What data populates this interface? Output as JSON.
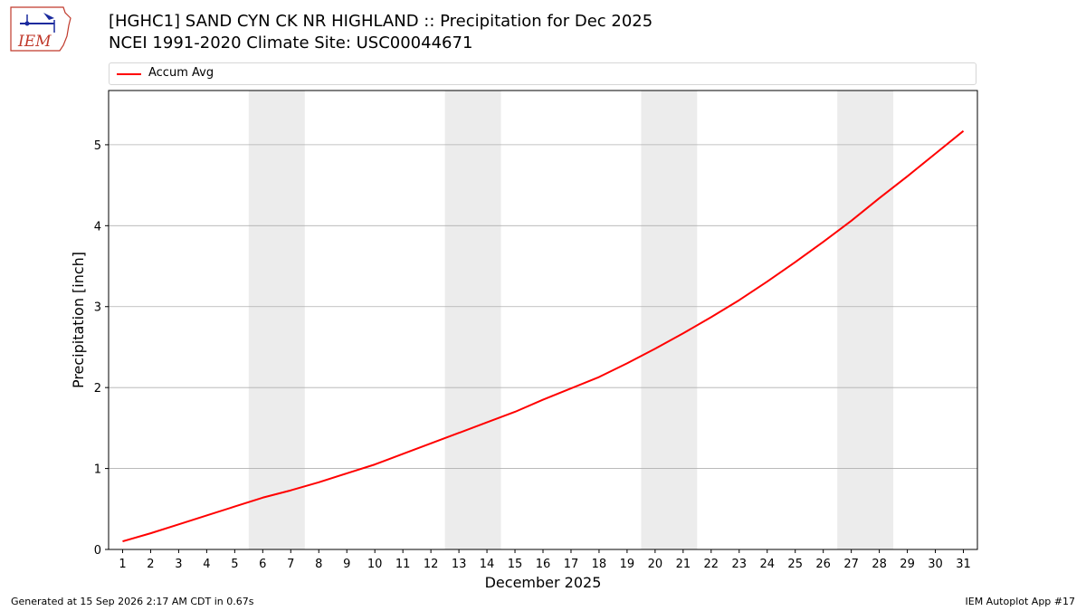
{
  "header": {
    "title_line1": "[HGHC1] SAND CYN CK NR HIGHLAND :: Precipitation for Dec 2025",
    "title_line2": "NCEI 1991-2020 Climate Site: USC00044671"
  },
  "logo": {
    "text": "IEM",
    "icon": "iem-logo-icon"
  },
  "footer": {
    "left": "Generated at 15 Sep 2026 2:17 AM CDT in 0.67s",
    "right": "IEM Autoplot App #17"
  },
  "colors": {
    "line": "#ff0000",
    "weekend_band": "#ececec",
    "grid": "#b0b0b0"
  },
  "chart_data": {
    "type": "line",
    "title": "[HGHC1] SAND CYN CK NR HIGHLAND :: Precipitation for Dec 2025",
    "subtitle": "NCEI 1991-2020 Climate Site: USC00044671",
    "xlabel": "December 2025",
    "ylabel": "Precipitation [inch]",
    "x": [
      1,
      2,
      3,
      4,
      5,
      6,
      7,
      8,
      9,
      10,
      11,
      12,
      13,
      14,
      15,
      16,
      17,
      18,
      19,
      20,
      21,
      22,
      23,
      24,
      25,
      26,
      27,
      28,
      29,
      30,
      31
    ],
    "x_ticks": [
      "1",
      "2",
      "3",
      "4",
      "5",
      "6",
      "7",
      "8",
      "9",
      "10",
      "11",
      "12",
      "13",
      "14",
      "15",
      "16",
      "17",
      "18",
      "19",
      "20",
      "21",
      "22",
      "23",
      "24",
      "25",
      "26",
      "27",
      "28",
      "29",
      "30",
      "31"
    ],
    "xlim": [
      0.5,
      31.5
    ],
    "ylim": [
      0,
      5.67
    ],
    "y_ticks": [
      0,
      1,
      2,
      3,
      4,
      5
    ],
    "grid": "horizontal",
    "legend": "top",
    "shaded_x_ranges": [
      [
        5.5,
        7.5
      ],
      [
        12.5,
        14.5
      ],
      [
        19.5,
        21.5
      ],
      [
        26.5,
        28.5
      ]
    ],
    "series": [
      {
        "name": "Accum Avg",
        "values": [
          0.1,
          0.2,
          0.31,
          0.42,
          0.53,
          0.64,
          0.73,
          0.83,
          0.94,
          1.05,
          1.18,
          1.31,
          1.44,
          1.57,
          1.7,
          1.85,
          1.99,
          2.13,
          2.3,
          2.48,
          2.67,
          2.87,
          3.08,
          3.31,
          3.55,
          3.8,
          4.06,
          4.34,
          4.61,
          4.89,
          5.17
        ]
      }
    ]
  }
}
